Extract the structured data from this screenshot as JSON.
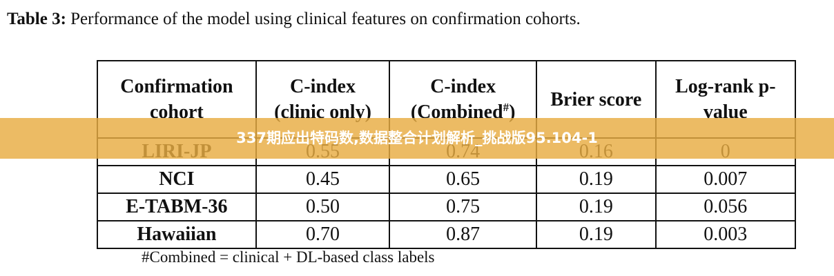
{
  "caption": {
    "label": "Table 3:",
    "text": " Performance of the model using clinical features on confirmation cohorts."
  },
  "table": {
    "header": [
      "Confirmation cohort",
      "C-index (clinic only)",
      {
        "main": "C-index (Combined",
        "sup": "#",
        "close": ")"
      },
      "Brier score",
      "Log-rank p-value"
    ],
    "rows": [
      [
        "LIRI-JP",
        "0.55",
        "0.74",
        "0.16",
        "0"
      ],
      [
        "NCI",
        "0.45",
        "0.65",
        "0.19",
        "0.007"
      ],
      [
        "E-TABM-36",
        "0.50",
        "0.75",
        "0.19",
        "0.056"
      ],
      [
        "Hawaiian",
        "0.70",
        "0.87",
        "0.19",
        "0.003"
      ]
    ]
  },
  "footnote": "#Combined = clinical + DL-based class labels",
  "banner": "337期应出特码数,数据整合计划解析_挑战版95.104-1"
}
